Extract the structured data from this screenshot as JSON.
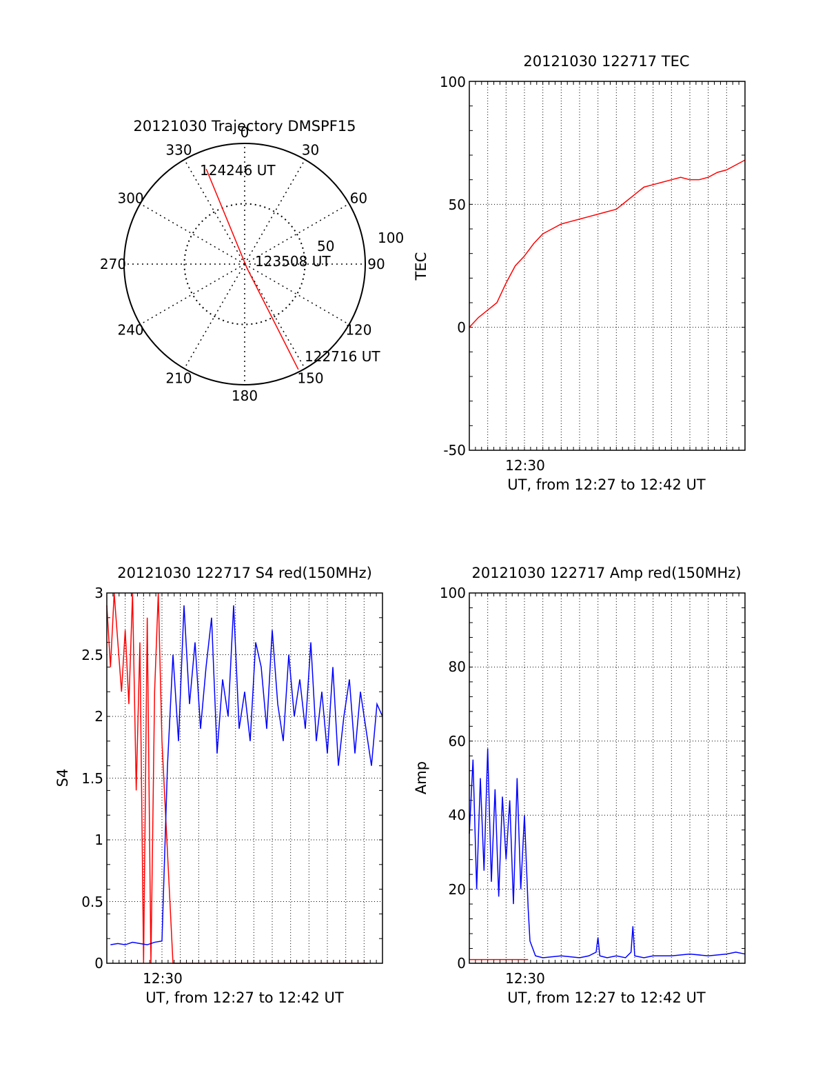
{
  "figure": {
    "colors": {
      "primary": "#ff0000",
      "secondary": "#0000ff",
      "axes": "#000000",
      "background": "#ffffff"
    }
  },
  "chart_data": [
    {
      "type": "polar-trajectory",
      "title": "20121030 Trajectory DMSPF15",
      "angle_labels": [
        "0",
        "30",
        "60",
        "90",
        "120",
        "150",
        "180",
        "210",
        "240",
        "270",
        "300",
        "330"
      ],
      "radial_labels": [
        "50",
        "100"
      ],
      "rlim": [
        0,
        100
      ],
      "grid": true,
      "annotations": [
        "124246 UT",
        "123508 UT",
        "122716 UT"
      ],
      "trajectory": [
        {
          "time": "124246 UT",
          "azimuth": 338,
          "zenith": 85
        },
        {
          "time": "123508 UT",
          "azimuth": 150,
          "zenith": 4
        },
        {
          "time": "122716 UT",
          "azimuth": 153,
          "zenith": 98
        }
      ]
    },
    {
      "type": "line",
      "title": "20121030 122717 TEC",
      "xlabel": "UT, from 12:27 to 12:42 UT",
      "ylabel": "TEC",
      "x_tick_labels": [
        "12:30"
      ],
      "y_tick_labels": [
        "100",
        "50",
        "0",
        "-50"
      ],
      "xlim": [
        0,
        15
      ],
      "ylim": [
        -50,
        100
      ],
      "grid": true,
      "series": [
        {
          "x": [
            0,
            0.5,
            1,
            1.5,
            2,
            2.5,
            3,
            3.5,
            4,
            4.5,
            5,
            5.5,
            6,
            6.5,
            7,
            7.5,
            8,
            8.5,
            9,
            9.5,
            10,
            10.5,
            11,
            11.5,
            12,
            12.5,
            13,
            13.5,
            14,
            14.5,
            15
          ],
          "values": [
            0,
            4,
            7,
            10,
            18,
            25,
            29,
            34,
            38,
            40,
            42,
            43,
            44,
            45,
            46,
            47,
            48,
            51,
            54,
            57,
            58,
            59,
            60,
            61,
            60,
            60,
            61,
            63,
            64,
            66,
            68
          ]
        }
      ]
    },
    {
      "type": "line",
      "title": "20121030 122717 S4 red(150MHz)",
      "xlabel": "UT, from 12:27 to 12:42 UT",
      "ylabel": "S4",
      "x_tick_labels": [
        "12:30"
      ],
      "y_tick_labels": [
        "3",
        "2.5",
        "2",
        "1.5",
        "1",
        "0.5",
        "0"
      ],
      "xlim": [
        0,
        15
      ],
      "ylim": [
        0,
        3
      ],
      "grid": true,
      "series": [
        {
          "x": [
            0,
            0.2,
            0.4,
            0.6,
            0.8,
            1.0,
            1.2,
            1.4,
            1.6,
            1.8,
            2.0,
            2.2,
            2.4,
            2.6,
            2.8,
            3.0,
            3.6,
            4.1,
            4.8,
            5.2,
            5.6,
            6.3,
            6.8,
            7.0,
            7.2,
            7.4,
            7.6,
            7.8,
            8.0,
            8.3,
            8.6,
            8.9,
            9.2,
            9.6,
            10.0,
            10.4,
            10.8,
            11.2,
            11.6,
            12.0,
            12.4,
            12.8,
            13.3,
            13.8,
            14.2
          ],
          "values": [
            2.9,
            2.4,
            3.0,
            2.6,
            2.2,
            2.7,
            2.1,
            3.0,
            1.4,
            2.6,
            0.0,
            2.8,
            0.0,
            2.2,
            3.0,
            1.8,
            0.0,
            0.0,
            0.0,
            0.0,
            0.0,
            0.0,
            0.0,
            0.0,
            0.0,
            0.0,
            0.0,
            0.0,
            0.0,
            0.0,
            0.0,
            0.0,
            0.0,
            0.0,
            0.0,
            0.0,
            0.0,
            0.0,
            0.0,
            0.0,
            0.0,
            0.0,
            0.0,
            0.0,
            0.0
          ]
        },
        {
          "x": [
            0.2,
            0.6,
            1.0,
            1.4,
            1.8,
            2.2,
            2.6,
            3.0,
            3.3,
            3.6,
            3.9,
            4.2,
            4.5,
            4.8,
            5.1,
            5.4,
            5.7,
            6.0,
            6.3,
            6.6,
            6.9,
            7.2,
            7.5,
            7.8,
            8.1,
            8.4,
            8.7,
            9.0,
            9.3,
            9.6,
            9.9,
            10.2,
            10.5,
            10.8,
            11.1,
            11.4,
            11.7,
            12.0,
            12.3,
            12.6,
            12.9,
            13.2,
            13.5,
            13.8,
            14.1,
            14.4,
            14.7,
            15.0
          ],
          "values": [
            0.15,
            0.16,
            0.15,
            0.17,
            0.16,
            0.15,
            0.17,
            0.18,
            1.6,
            2.5,
            1.8,
            2.9,
            2.1,
            2.6,
            1.9,
            2.4,
            2.8,
            1.7,
            2.3,
            2.0,
            2.9,
            1.9,
            2.2,
            1.8,
            2.6,
            2.4,
            1.9,
            2.7,
            2.1,
            1.8,
            2.5,
            2.0,
            2.3,
            1.9,
            2.6,
            1.8,
            2.2,
            1.7,
            2.4,
            1.6,
            2.0,
            2.3,
            1.7,
            2.2,
            1.9,
            1.6,
            2.1,
            2.0
          ]
        }
      ]
    },
    {
      "type": "line",
      "title": "20121030 122717 Amp red(150MHz)",
      "xlabel": "UT, from 12:27 to 12:42 UT",
      "ylabel": "Amp",
      "x_tick_labels": [
        "12:30"
      ],
      "y_tick_labels": [
        "100",
        "80",
        "60",
        "40",
        "20",
        "0"
      ],
      "xlim": [
        0,
        15
      ],
      "ylim": [
        0,
        100
      ],
      "grid": true,
      "series": [
        {
          "x": [
            0,
            1,
            2,
            3,
            3.2
          ],
          "values": [
            1,
            1,
            1,
            1,
            1
          ]
        },
        {
          "x": [
            0,
            0.2,
            0.4,
            0.6,
            0.8,
            1.0,
            1.2,
            1.4,
            1.6,
            1.8,
            2.0,
            2.2,
            2.4,
            2.6,
            2.8,
            3.0,
            3.2,
            3.3,
            3.6,
            4.0,
            5.0,
            6.0,
            6.5,
            6.9,
            7.0,
            7.1,
            7.5,
            8.0,
            8.5,
            8.8,
            8.9,
            9.0,
            9.5,
            10,
            11,
            12,
            13,
            14,
            14.5,
            15
          ],
          "values": [
            35,
            55,
            20,
            50,
            25,
            58,
            22,
            47,
            18,
            45,
            28,
            44,
            16,
            50,
            20,
            40,
            15,
            6,
            2,
            1.5,
            2,
            1.5,
            2,
            3,
            7,
            2,
            1.5,
            2,
            1.5,
            3,
            10,
            2,
            1.5,
            2,
            2,
            2.5,
            2,
            2.5,
            3,
            2.5
          ]
        }
      ]
    }
  ]
}
